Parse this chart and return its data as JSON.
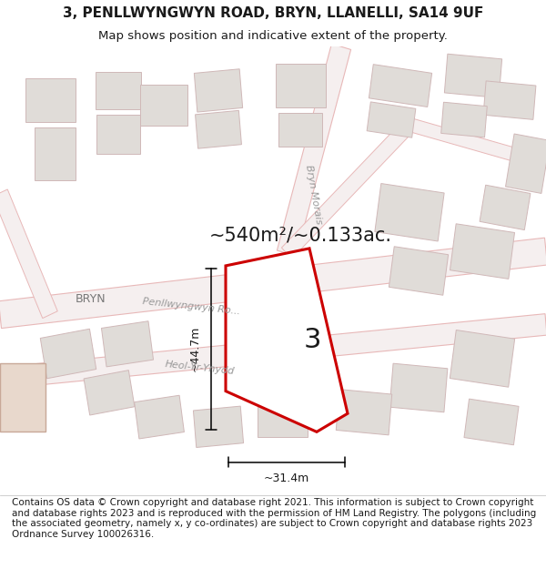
{
  "title_line1": "3, PENLLWYNGWYN ROAD, BRYN, LLANELLI, SA14 9UF",
  "title_line2": "Map shows position and indicative extent of the property.",
  "area_label": "~540m²/~0.133ac.",
  "property_number": "3",
  "dim_vertical": "~44.7m",
  "dim_horizontal": "~31.4m",
  "footer_text": "Contains OS data © Crown copyright and database right 2021. This information is subject to Crown copyright and database rights 2023 and is reproduced with the permission of HM Land Registry. The polygons (including the associated geometry, namely x, y co-ordinates) are subject to Crown copyright and database rights 2023 Ordnance Survey 100026316.",
  "bg_color": "#f7f4f0",
  "property_fill": "#ffffff",
  "property_edge": "#cc0000",
  "road_outline_color": "#e8b8b8",
  "road_fill_color": "#f0e8e8",
  "building_fill": "#e0dcd8",
  "building_edge": "#d0b8b8",
  "text_color": "#1a1a1a",
  "road_text_color": "#999999",
  "title_fontsize": 11,
  "subtitle_fontsize": 9.5,
  "area_fontsize": 15,
  "dim_fontsize": 9,
  "footer_fontsize": 7.5
}
